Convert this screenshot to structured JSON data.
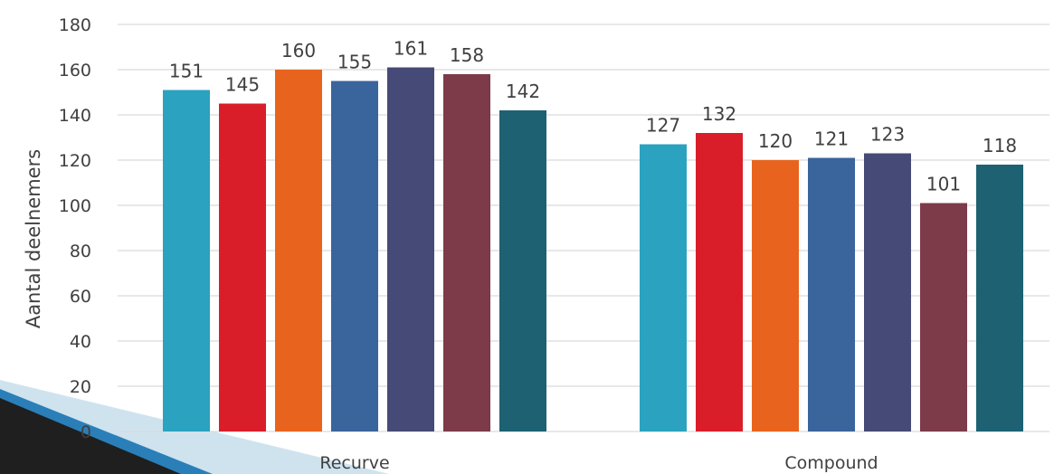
{
  "chart_data": {
    "type": "bar",
    "categories": [
      "Recurve",
      "Compound"
    ],
    "series": [
      {
        "values": [
          151,
          127
        ],
        "color": "#2BA2BF"
      },
      {
        "values": [
          145,
          132
        ],
        "color": "#D91E2A"
      },
      {
        "values": [
          160,
          120
        ],
        "color": "#E8641E"
      },
      {
        "values": [
          155,
          121
        ],
        "color": "#3A649C"
      },
      {
        "values": [
          161,
          123
        ],
        "color": "#454A76"
      },
      {
        "values": [
          158,
          101
        ],
        "color": "#7D3A49"
      },
      {
        "values": [
          142,
          118
        ],
        "color": "#1D6173"
      }
    ],
    "ylabel": "Aantal deelnemers",
    "ylim": [
      0,
      180
    ],
    "yticks": [
      0,
      20,
      40,
      60,
      80,
      100,
      120,
      140,
      160,
      180
    ],
    "grid": true,
    "data_labels": true
  },
  "decor": {
    "corner_accent_colors": [
      "#1f1f1f",
      "#2b7fb8",
      "#cfe3ef"
    ]
  }
}
